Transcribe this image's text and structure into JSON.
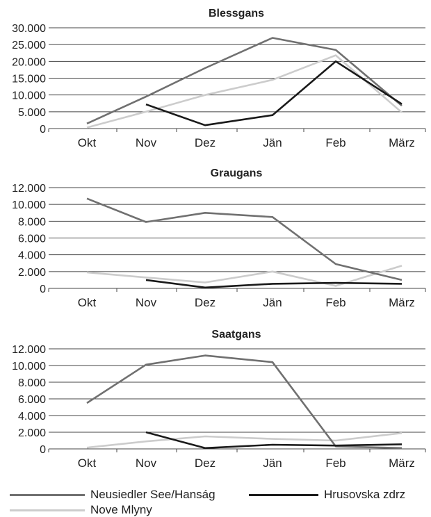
{
  "colors": {
    "neusiedler": "#707070",
    "hrusovska": "#1a1a1a",
    "nove": "#cccccc",
    "grid": "#444444",
    "text": "#222222"
  },
  "legend": {
    "neusiedler": "Neusiedler See/Hanság",
    "hrusovska": "Hrusovska zdrz",
    "nove": "Nove Mlyny"
  },
  "chart_data": [
    {
      "type": "line",
      "title": "Blessgans",
      "categories": [
        "Okt",
        "Nov",
        "Dez",
        "Jän",
        "Feb",
        "März"
      ],
      "yticks": [
        "0",
        "5.000",
        "10.000",
        "15.000",
        "20.000",
        "25.000",
        "30.000"
      ],
      "ylim": [
        0,
        30000
      ],
      "grid": true,
      "series": [
        {
          "key": "neusiedler",
          "name": "Neusiedler See/Hanság",
          "values": [
            1500,
            9500,
            18000,
            27000,
            23400,
            6800
          ]
        },
        {
          "key": "hrusovska",
          "name": "Hrusovska zdrz",
          "values": [
            null,
            7200,
            1000,
            4000,
            20000,
            7300
          ]
        },
        {
          "key": "nove",
          "name": "Nove Mlyny",
          "values": [
            300,
            5000,
            10000,
            14500,
            21800,
            4800
          ]
        }
      ]
    },
    {
      "type": "line",
      "title": "Graugans",
      "categories": [
        "Okt",
        "Nov",
        "Dez",
        "Jän",
        "Feb",
        "März"
      ],
      "yticks": [
        "0",
        "2.000",
        "4.000",
        "6.000",
        "8.000",
        "10.000",
        "12.000"
      ],
      "ylim": [
        0,
        12000
      ],
      "grid": true,
      "series": [
        {
          "key": "neusiedler",
          "name": "Neusiedler See/Hanság",
          "values": [
            10700,
            7900,
            9000,
            8500,
            2900,
            1000
          ]
        },
        {
          "key": "hrusovska",
          "name": "Hrusovska zdrz",
          "values": [
            null,
            1000,
            100,
            550,
            650,
            550
          ]
        },
        {
          "key": "nove",
          "name": "Nove Mlyny",
          "values": [
            1900,
            1300,
            700,
            2000,
            300,
            2700
          ]
        }
      ]
    },
    {
      "type": "line",
      "title": "Saatgans",
      "categories": [
        "Okt",
        "Nov",
        "Dez",
        "Jän",
        "Feb",
        "März"
      ],
      "yticks": [
        "0",
        "2.000",
        "4.000",
        "6.000",
        "8.000",
        "10.000",
        "12.000"
      ],
      "ylim": [
        0,
        12000
      ],
      "grid": true,
      "series": [
        {
          "key": "neusiedler",
          "name": "Neusiedler See/Hanság",
          "values": [
            5500,
            10100,
            11200,
            10400,
            300,
            100
          ]
        },
        {
          "key": "hrusovska",
          "name": "Hrusovska zdrz",
          "values": [
            null,
            2000,
            100,
            500,
            400,
            550
          ]
        },
        {
          "key": "nove",
          "name": "Nove Mlyny",
          "values": [
            150,
            900,
            1500,
            1200,
            1000,
            1900
          ]
        }
      ]
    }
  ]
}
